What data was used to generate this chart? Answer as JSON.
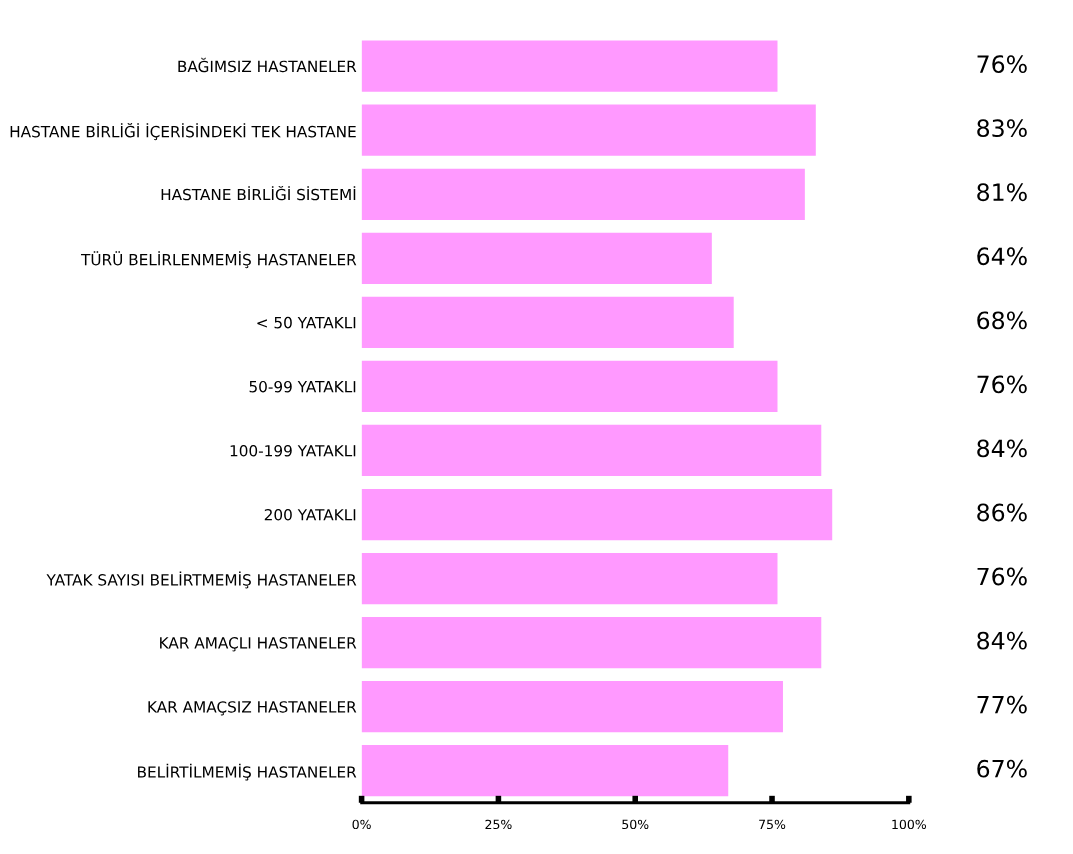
{
  "chart_data": {
    "type": "bar",
    "orientation": "horizontal",
    "categories": [
      "BAĞIMSIZ HASTANELER",
      "HASTANE BİRLİĞİ İÇERİSİNDEKİ TEK HASTANE",
      "HASTANE BİRLİĞİ SİSTEMİ",
      "TÜRÜ BELİRLENMEMİŞ HASTANELER",
      "< 50 YATAKLI",
      "50-99 YATAKLI",
      "100-199 YATAKLI",
      "200 YATAKLI",
      "YATAK SAYISI BELİRTMEMİŞ HASTANELER",
      "KAR AMAÇLI HASTANELER",
      "KAR AMAÇSIZ HASTANELER",
      "BELİRTİLMEMİŞ HASTANELER"
    ],
    "values": [
      76,
      83,
      81,
      64,
      68,
      76,
      84,
      86,
      76,
      84,
      77,
      67
    ],
    "value_labels": [
      "76%",
      "83%",
      "81%",
      "64%",
      "68%",
      "76%",
      "84%",
      "86%",
      "76%",
      "84%",
      "77%",
      "67%"
    ],
    "color": "#ff99ff",
    "xlim": [
      0,
      100
    ],
    "xticks": [
      {
        "value": 0,
        "label": "0%"
      },
      {
        "value": 25,
        "label": "25%"
      },
      {
        "value": 50,
        "label": "50%"
      },
      {
        "value": 75,
        "label": "75%"
      },
      {
        "value": 100,
        "label": "100%"
      }
    ],
    "grid": false,
    "legend": false
  }
}
